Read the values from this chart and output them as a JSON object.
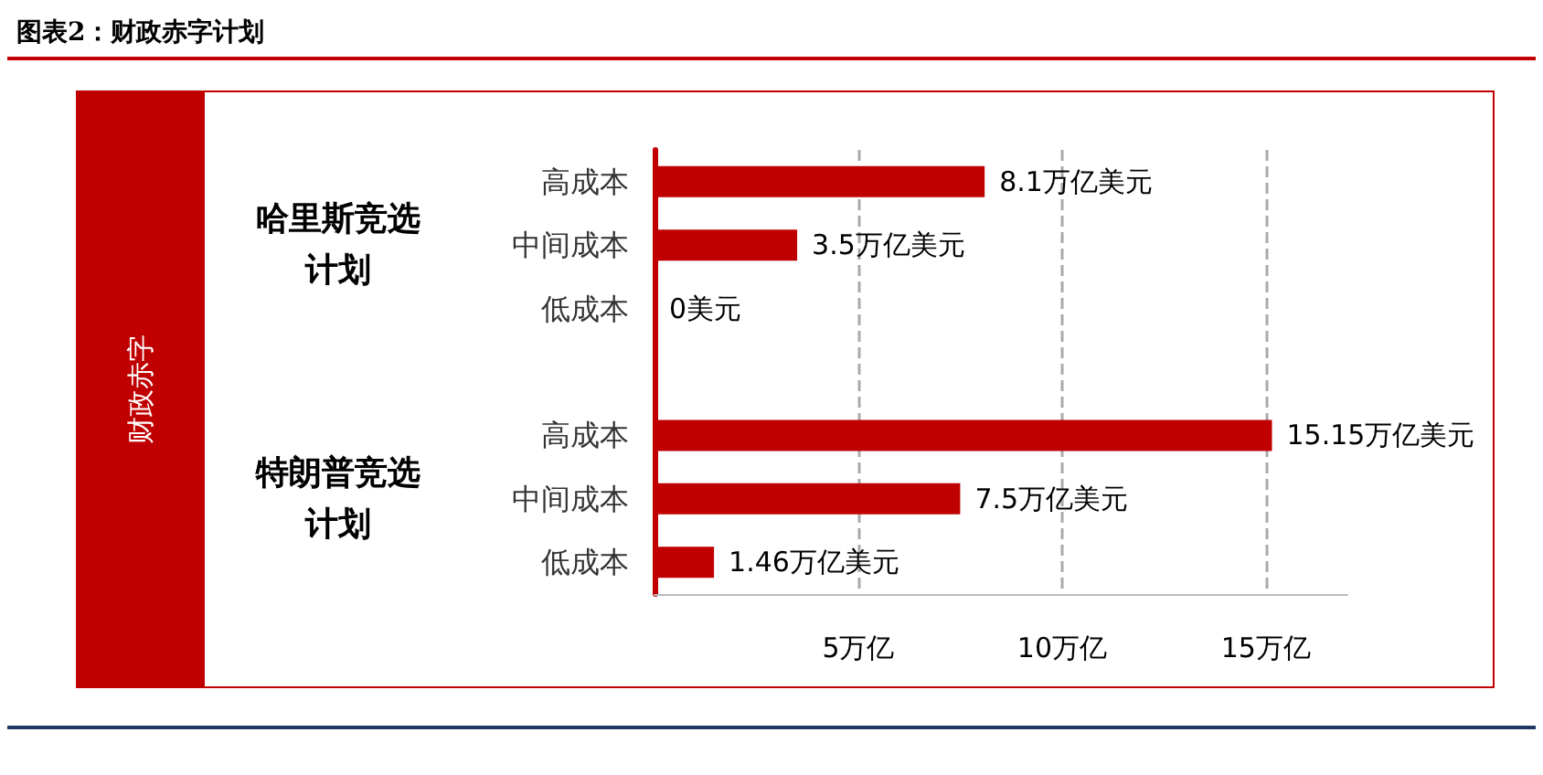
{
  "chart_data": {
    "type": "bar",
    "orientation": "horizontal",
    "title": "图表2：财政赤字计划",
    "categories": [
      "高成本",
      "中间成本",
      "低成本",
      null,
      "高成本",
      "中间成本",
      "低成本"
    ],
    "values": [
      8.1,
      3.5,
      0,
      null,
      15.15,
      7.5,
      1.46
    ],
    "value_labels": [
      "8.1万亿美元",
      "3.5万亿美元",
      "0美元",
      null,
      "15.15万亿美元",
      "7.5万亿美元",
      "1.46万亿美元"
    ],
    "color": "#c00000",
    "xlim": [
      0,
      17
    ],
    "xticks": [
      {
        "value": 5,
        "label": "5万亿"
      },
      {
        "value": 10,
        "label": "10万亿"
      },
      {
        "value": 15,
        "label": "15万亿"
      }
    ],
    "grid": "x",
    "annotations": [
      "财政赤字",
      "哈里斯竞选计划",
      "特朗普竞选计划"
    ]
  }
}
